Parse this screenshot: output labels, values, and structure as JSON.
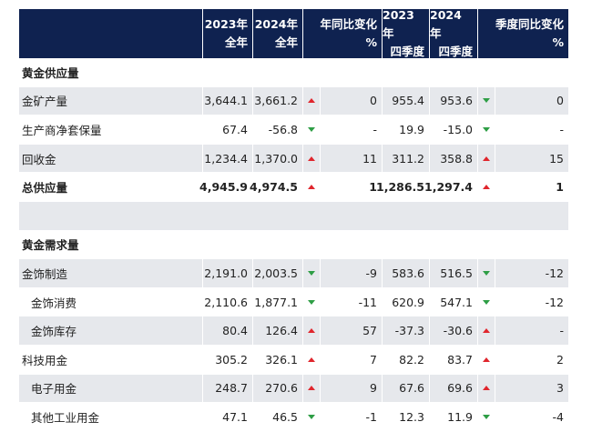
{
  "header": {
    "col_2023": [
      "2023年",
      "全年"
    ],
    "col_2024": [
      "2024年",
      "全年"
    ],
    "col_yoy": [
      "年同比变化",
      "%"
    ],
    "col_q2023": [
      "2023年",
      "四季度"
    ],
    "col_q2024": [
      "2024年",
      "四季度"
    ],
    "col_qoq": [
      "季度同比变化",
      "%"
    ]
  },
  "rows": [
    {
      "type": "section",
      "label": "黄金供应量"
    },
    {
      "type": "data",
      "shade": true,
      "indent": false,
      "bold": false,
      "label": "金矿产量",
      "y2023": "3,644.1",
      "y2024": "3,661.2",
      "yoy_dir": "up",
      "yoy": "0",
      "q2023": "955.4",
      "q2024": "953.6",
      "qoq_dir": "down",
      "qoq": "0"
    },
    {
      "type": "data",
      "shade": false,
      "indent": false,
      "bold": false,
      "label": "生产商净套保量",
      "y2023": "67.4",
      "y2024": "-56.8",
      "yoy_dir": "down",
      "yoy": "-",
      "q2023": "19.9",
      "q2024": "-15.0",
      "qoq_dir": "down",
      "qoq": "-"
    },
    {
      "type": "data",
      "shade": true,
      "indent": false,
      "bold": false,
      "label": "回收金",
      "y2023": "1,234.4",
      "y2024": "1,370.0",
      "yoy_dir": "up",
      "yoy": "11",
      "q2023": "311.2",
      "q2024": "358.8",
      "qoq_dir": "up",
      "qoq": "15"
    },
    {
      "type": "data",
      "shade": false,
      "indent": false,
      "bold": true,
      "label": "总供应量",
      "y2023": "4,945.9",
      "y2024": "4,974.5",
      "yoy_dir": "up",
      "yoy": "1",
      "q2023": "1,286.5",
      "q2024": "1,297.4",
      "qoq_dir": "up",
      "qoq": "1"
    },
    {
      "type": "spacer"
    },
    {
      "type": "section",
      "label": "黄金需求量"
    },
    {
      "type": "data",
      "shade": true,
      "indent": false,
      "bold": false,
      "label": "金饰制造",
      "y2023": "2,191.0",
      "y2024": "2,003.5",
      "yoy_dir": "down",
      "yoy": "-9",
      "q2023": "583.6",
      "q2024": "516.5",
      "qoq_dir": "down",
      "qoq": "-12"
    },
    {
      "type": "data",
      "shade": false,
      "indent": true,
      "bold": false,
      "label": "金饰消费",
      "y2023": "2,110.6",
      "y2024": "1,877.1",
      "yoy_dir": "down",
      "yoy": "-11",
      "q2023": "620.9",
      "q2024": "547.1",
      "qoq_dir": "down",
      "qoq": "-12"
    },
    {
      "type": "data",
      "shade": true,
      "indent": true,
      "bold": false,
      "label": "金饰库存",
      "y2023": "80.4",
      "y2024": "126.4",
      "yoy_dir": "up",
      "yoy": "57",
      "q2023": "-37.3",
      "q2024": "-30.6",
      "qoq_dir": "up",
      "qoq": "-"
    },
    {
      "type": "data",
      "shade": false,
      "indent": false,
      "bold": false,
      "label": "科技用金",
      "y2023": "305.2",
      "y2024": "326.1",
      "yoy_dir": "up",
      "yoy": "7",
      "q2023": "82.2",
      "q2024": "83.7",
      "qoq_dir": "up",
      "qoq": "2"
    },
    {
      "type": "data",
      "shade": true,
      "indent": true,
      "bold": false,
      "label": "电子用金",
      "y2023": "248.7",
      "y2024": "270.6",
      "yoy_dir": "up",
      "yoy": "9",
      "q2023": "67.6",
      "q2024": "69.6",
      "qoq_dir": "up",
      "qoq": "3"
    },
    {
      "type": "data",
      "shade": false,
      "indent": true,
      "bold": false,
      "label": "其他工业用金",
      "y2023": "47.1",
      "y2024": "46.5",
      "yoy_dir": "down",
      "yoy": "-1",
      "q2023": "12.3",
      "q2024": "11.9",
      "qoq_dir": "down",
      "qoq": "-4"
    }
  ],
  "colors": {
    "header_bg": "#0f2250",
    "row_shade": "#e6e8ec",
    "arrow_up": "#e0262d",
    "arrow_down": "#2e9e45"
  }
}
